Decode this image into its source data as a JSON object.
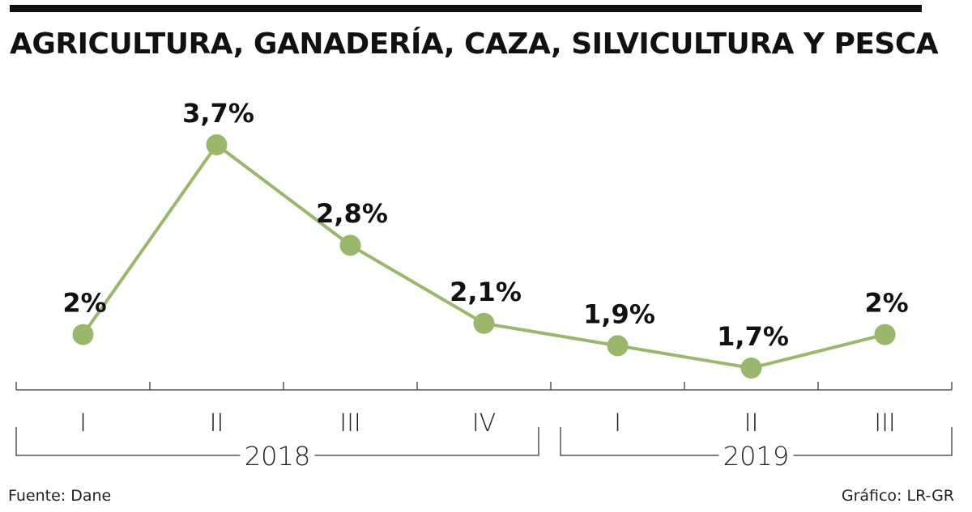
{
  "chart_data": {
    "type": "line",
    "title": "AGRICULTURA, GANADERÍA, CAZA, SILVICULTURA Y PESCA",
    "categories": [
      "I",
      "II",
      "III",
      "IV",
      "I",
      "II",
      "III"
    ],
    "groups": [
      {
        "label": "2018",
        "categories": [
          "I",
          "II",
          "III",
          "IV"
        ]
      },
      {
        "label": "2019",
        "categories": [
          "I",
          "II",
          "III"
        ]
      }
    ],
    "series": [
      {
        "values": [
          2.0,
          3.7,
          2.8,
          2.1,
          1.9,
          1.7,
          2.0
        ]
      }
    ],
    "data_labels": [
      "2%",
      "3,7%",
      "2,8%",
      "2,1%",
      "1,9%",
      "1,7%",
      "2%"
    ],
    "ylim": [
      1.5,
      3.9
    ],
    "grid": false,
    "line_color": "#9ab86a",
    "marker_color": "#9ab86a"
  },
  "footer": {
    "source": "Fuente: Dane",
    "credit": "Gráfico: LR-GR"
  }
}
